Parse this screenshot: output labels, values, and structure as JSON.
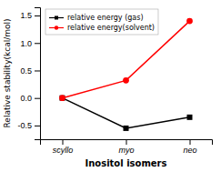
{
  "chart_data": {
    "type": "line",
    "categories": [
      "scyllo",
      "myo",
      "neo"
    ],
    "series": [
      {
        "name": "relative energy (gas)",
        "color": "#000000",
        "marker": "square",
        "values": [
          0.0,
          -0.55,
          -0.35
        ]
      },
      {
        "name": "relative energy(solvent)",
        "color": "#ff0000",
        "marker": "circle",
        "values": [
          0.0,
          0.32,
          1.4
        ]
      }
    ],
    "x_label": "Inositol isomers",
    "y_label": "Relative stability(kcal/mol)",
    "ylim": [
      -0.75,
      1.65
    ],
    "yticks": [
      -0.5,
      {
        "value": 0.0,
        "label": "0.0"
      },
      0.5,
      {
        "value": 1.0,
        "label": "1.0"
      },
      1.5
    ],
    "grid": false,
    "legend": "upper left"
  }
}
